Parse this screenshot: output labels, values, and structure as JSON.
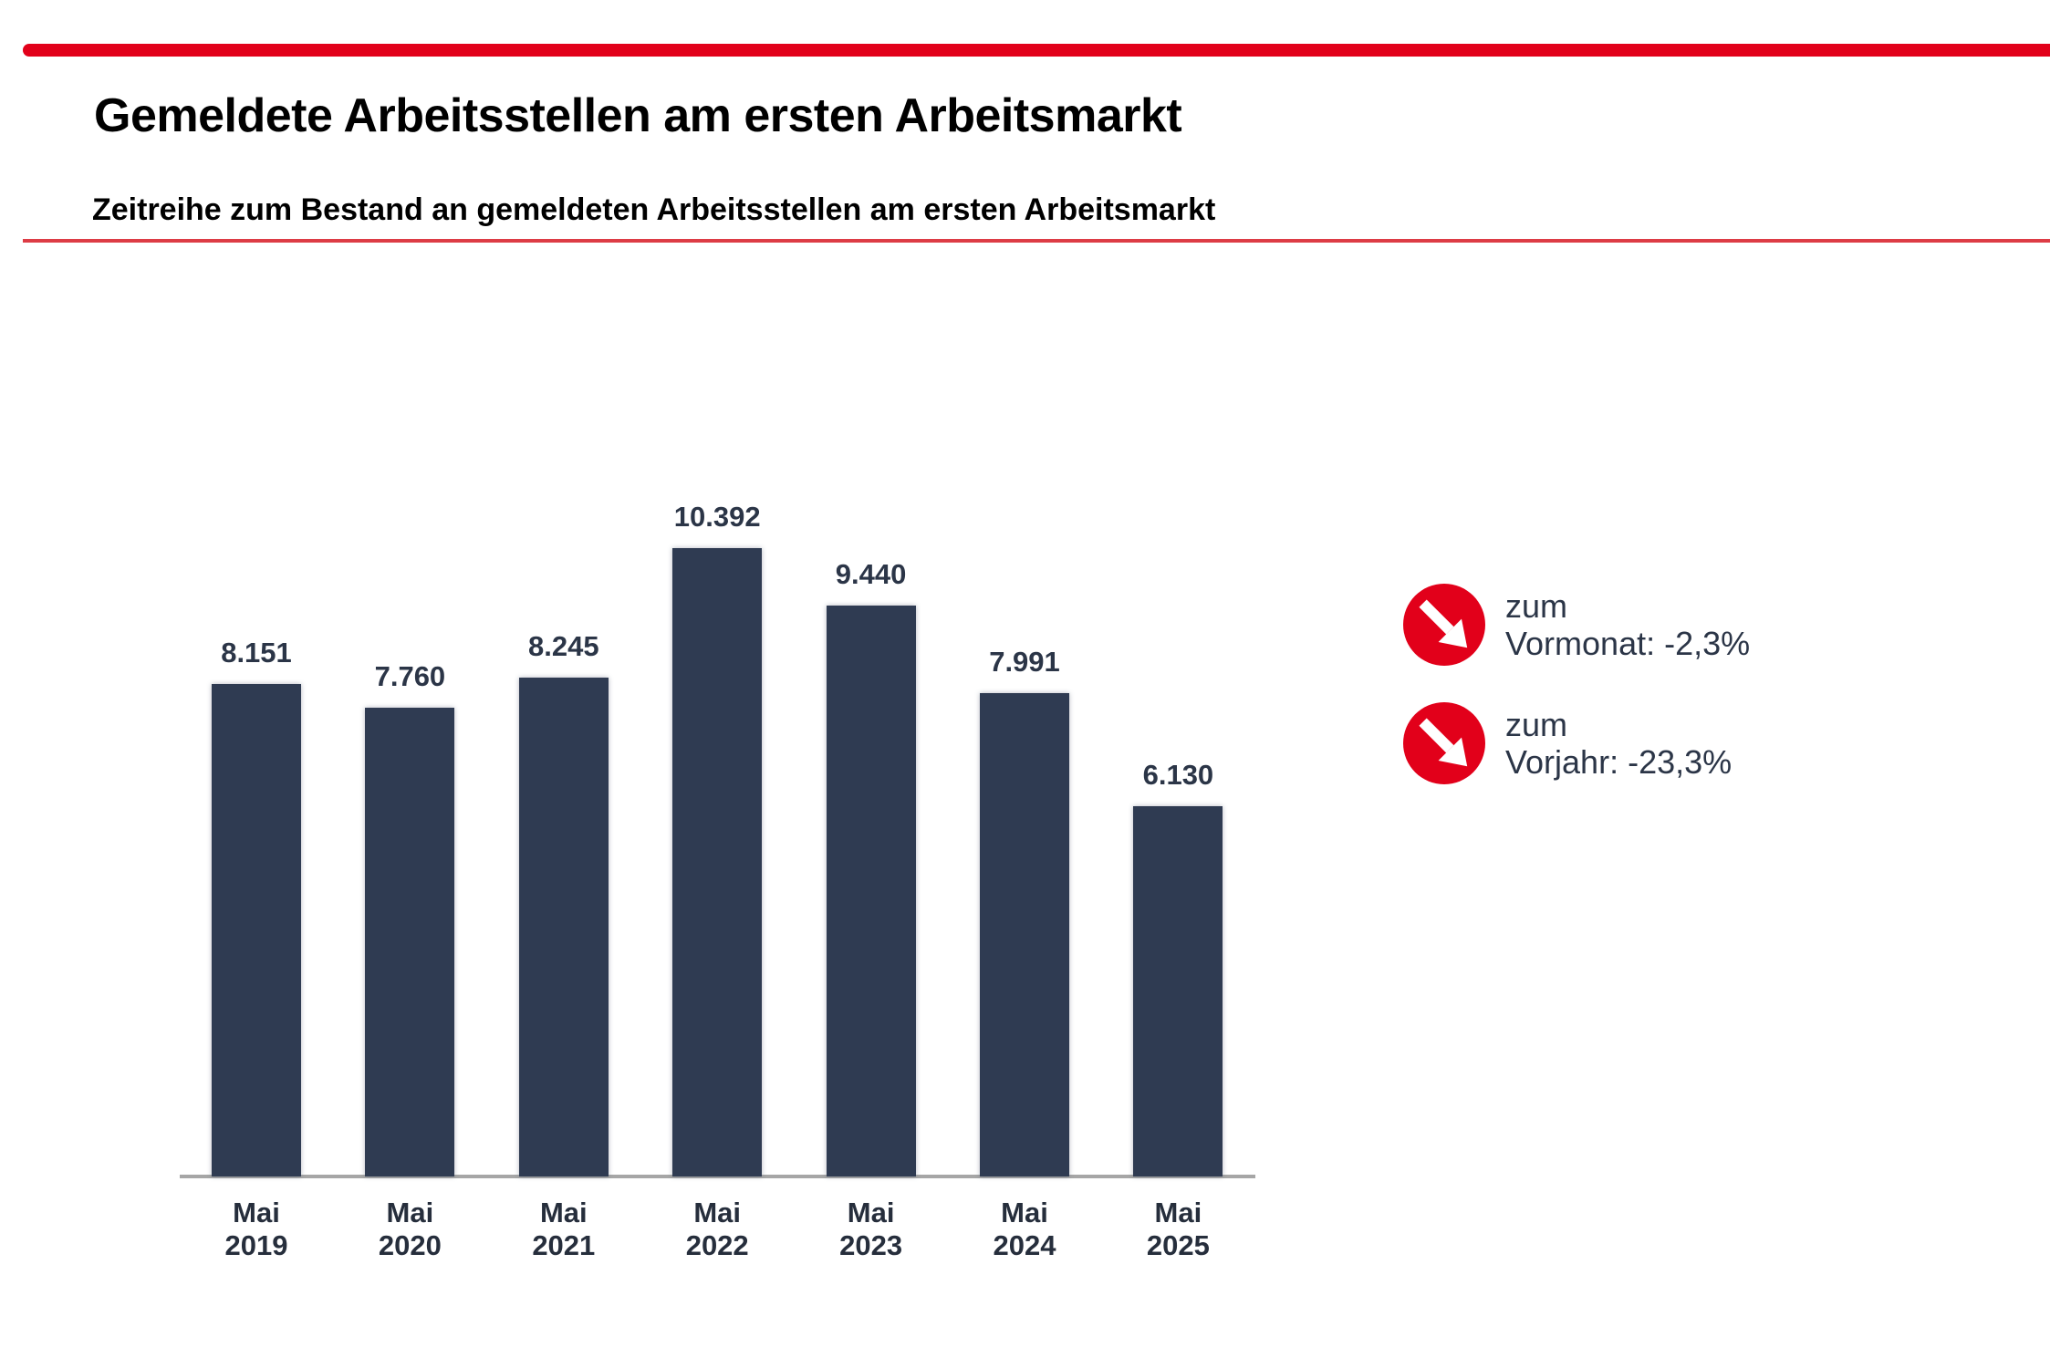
{
  "header": {
    "title": "Gemeldete Arbeitsstellen am ersten Arbeitsmarkt",
    "subtitle": "Zeitreihe zum Bestand an gemeldeten Arbeitsstellen am ersten Arbeitsmarkt"
  },
  "colors": {
    "accent_red": "#e2001a",
    "divider_red": "#dd3c45",
    "bar_color": "#2f3b52",
    "axis_color": "#a6a6a6",
    "text_dark": "#2b3547"
  },
  "chart_data": {
    "type": "bar",
    "title": "",
    "xlabel": "",
    "ylabel": "",
    "categories": [
      "Mai 2019",
      "Mai 2020",
      "Mai 2021",
      "Mai 2022",
      "Mai 2023",
      "Mai 2024",
      "Mai 2025"
    ],
    "values": [
      8151,
      7760,
      8245,
      10392,
      9440,
      7991,
      6130
    ],
    "data_labels": [
      "8.151",
      "7.760",
      "8.245",
      "10.392",
      "9.440",
      "7.991",
      "6.130"
    ],
    "bar_color": "#2f3b52",
    "ylim": [
      0,
      10392
    ],
    "grid": false,
    "legend": "none",
    "axis_line": "x-only"
  },
  "kpis": [
    {
      "icon": "arrow-down-right",
      "line1": "zum",
      "label": "Vormonat:",
      "value": "-2,3%"
    },
    {
      "icon": "arrow-down-right",
      "line1": "zum",
      "label": "Vorjahr:",
      "value": "-23,3%"
    }
  ]
}
